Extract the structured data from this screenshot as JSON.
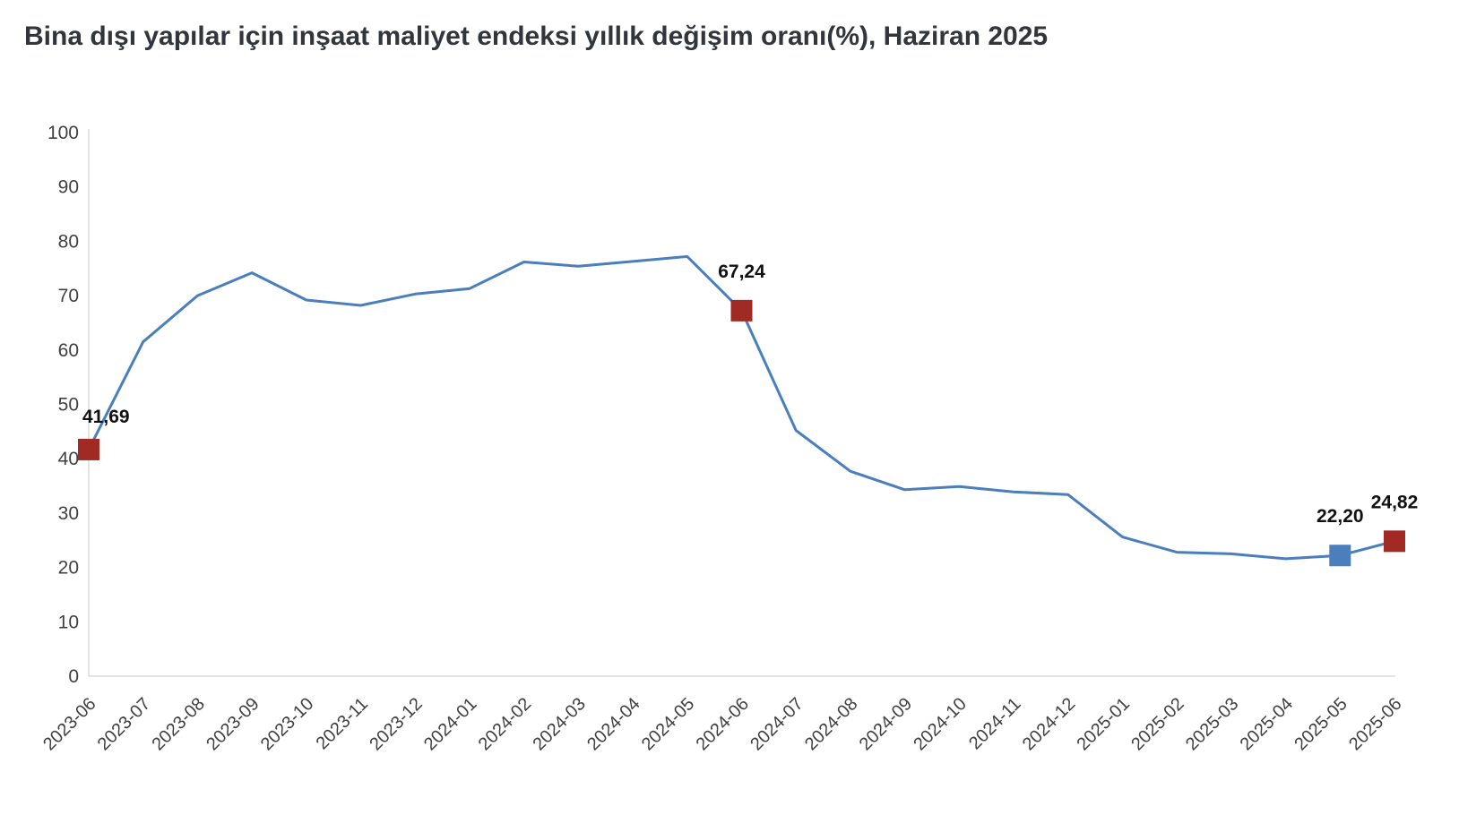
{
  "title": "Bina dışı yapılar için inşaat maliyet endeksi yıllık değişim oranı(%), Haziran 2025",
  "chart_data": {
    "type": "line",
    "title": "Bina dışı yapılar için inşaat maliyet endeksi yıllık değişim oranı(%), Haziran 2025",
    "x": [
      "2023-06",
      "2023-07",
      "2023-08",
      "2023-09",
      "2023-10",
      "2023-11",
      "2023-12",
      "2024-01",
      "2024-02",
      "2024-03",
      "2024-04",
      "2024-05",
      "2024-06",
      "2024-07",
      "2024-08",
      "2024-09",
      "2024-10",
      "2024-11",
      "2024-12",
      "2025-01",
      "2025-02",
      "2025-03",
      "2025-04",
      "2025-05",
      "2025-06"
    ],
    "series": [
      {
        "color": "#4a7ebd",
        "values": [
          41.69,
          61.5,
          70.0,
          74.2,
          69.2,
          68.2,
          70.3,
          71.3,
          76.2,
          75.4,
          76.3,
          77.2,
          67.24,
          45.2,
          37.7,
          34.3,
          34.9,
          33.9,
          33.4,
          25.6,
          22.8,
          22.5,
          21.6,
          22.2,
          24.82
        ]
      }
    ],
    "ylim": [
      0,
      100
    ],
    "ytick_step": 10,
    "yticks": [
      0,
      10,
      20,
      30,
      40,
      50,
      60,
      70,
      80,
      90,
      100
    ],
    "grid": false,
    "legend": false,
    "xlabel": "",
    "ylabel": "",
    "x_label_rotation_deg": -45,
    "highlighted_points": [
      {
        "x": "2023-06",
        "value": 41.69,
        "label": "41,69",
        "marker_color": "#a12b24",
        "label_position": "above-right"
      },
      {
        "x": "2024-06",
        "value": 67.24,
        "label": "67,24",
        "marker_color": "#a12b24",
        "label_position": "above"
      },
      {
        "x": "2025-05",
        "value": 22.2,
        "label": "22,20",
        "marker_color": "#4a7fbb",
        "label_position": "above"
      },
      {
        "x": "2025-06",
        "value": 24.82,
        "label": "24,82",
        "marker_color": "#a12b24",
        "label_position": "above"
      }
    ],
    "colors": {
      "line": "#4a7ebd",
      "marker_red": "#a12b24",
      "marker_blue": "#4a7fbb",
      "axis_line": "#dcdcdc",
      "tick_label": "#404040",
      "data_label": "#111111",
      "title": "#31363c",
      "background": "#ffffff"
    }
  }
}
